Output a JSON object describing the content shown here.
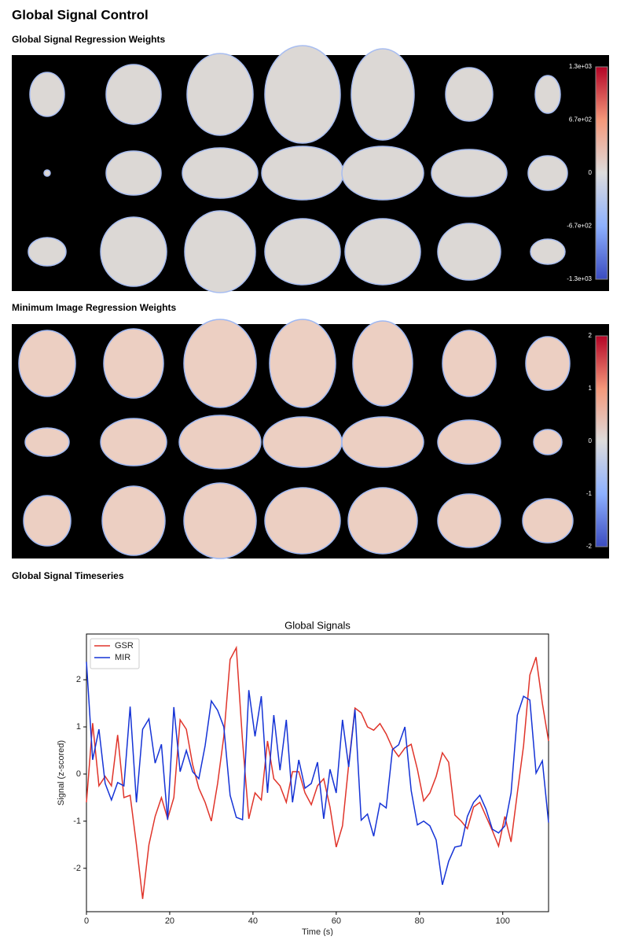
{
  "header": {
    "title": "Global Signal Control"
  },
  "sections": [
    {
      "heading": "Global Signal Regression Weights",
      "colorbar": [
        "1.3e+03",
        "6.7e+02",
        "0",
        "-6.7e+02",
        "-1.3e+03"
      ]
    },
    {
      "heading": "Minimum Image Regression Weights",
      "colorbar": [
        "2",
        "1",
        "0",
        "-1",
        "-2"
      ]
    },
    {
      "heading": "Global Signal Timeseries"
    }
  ],
  "chart_data": {
    "type": "line",
    "title": "Global Signals",
    "x_label": "Time (s)",
    "y_label": "Signal (z-scored)",
    "x": [
      0,
      1.5,
      3,
      4.5,
      6,
      7.5,
      9,
      10.5,
      12,
      13.5,
      15,
      16.5,
      18,
      19.5,
      21,
      22.5,
      24,
      25.5,
      27,
      28.5,
      30,
      31.5,
      33,
      34.5,
      36,
      37.5,
      39,
      40.5,
      42,
      43.5,
      45,
      46.5,
      48,
      49.5,
      51,
      52.5,
      54,
      55.5,
      57,
      58.5,
      60,
      61.5,
      63,
      64.5,
      66,
      67.5,
      69,
      70.5,
      72,
      73.5,
      75,
      76.5,
      78,
      79.5,
      81,
      82.5,
      84,
      85.5,
      87,
      88.5,
      90,
      91.5,
      93,
      94.5,
      96,
      97.5,
      99,
      100.5,
      102,
      103.5,
      105,
      106.5,
      108,
      109.5,
      111
    ],
    "series": [
      {
        "name": "GSR",
        "color": "#e0342a",
        "values": [
          -0.6,
          1.08,
          -0.25,
          -0.05,
          -0.25,
          0.83,
          -0.5,
          -0.45,
          -1.5,
          -2.65,
          -1.5,
          -0.9,
          -0.5,
          -0.95,
          -0.5,
          1.15,
          0.95,
          0.2,
          -0.3,
          -0.6,
          -1.0,
          -0.2,
          0.8,
          2.43,
          2.68,
          0.7,
          -0.95,
          -0.4,
          -0.55,
          0.7,
          -0.1,
          -0.25,
          -0.6,
          0.05,
          0.05,
          -0.4,
          -0.65,
          -0.25,
          -0.1,
          -0.7,
          -1.55,
          -1.1,
          0.2,
          1.4,
          1.3,
          1.0,
          0.93,
          1.07,
          0.85,
          0.55,
          0.37,
          0.55,
          0.63,
          0.1,
          -0.57,
          -0.4,
          -0.05,
          0.45,
          0.25,
          -0.87,
          -1.0,
          -1.16,
          -0.7,
          -0.6,
          -0.9,
          -1.2,
          -1.53,
          -0.9,
          -1.44,
          -0.4,
          0.6,
          2.1,
          2.48,
          1.5,
          0.7
        ]
      },
      {
        "name": "MIR",
        "color": "#1533d6",
        "values": [
          2.38,
          0.3,
          0.95,
          -0.2,
          -0.55,
          -0.18,
          -0.25,
          1.43,
          -0.6,
          0.95,
          1.17,
          0.23,
          0.63,
          -0.97,
          1.42,
          0.05,
          0.5,
          0.05,
          -0.1,
          0.6,
          1.55,
          1.35,
          1.0,
          -0.45,
          -0.92,
          -0.97,
          1.78,
          0.8,
          1.65,
          -0.4,
          1.25,
          0.08,
          1.15,
          -0.6,
          0.3,
          -0.3,
          -0.2,
          0.25,
          -0.95,
          0.1,
          -0.4,
          1.15,
          0.15,
          1.37,
          -0.98,
          -0.85,
          -1.32,
          -0.62,
          -0.72,
          0.52,
          0.62,
          1.0,
          -0.35,
          -1.08,
          -1.0,
          -1.1,
          -1.4,
          -2.35,
          -1.85,
          -1.55,
          -1.52,
          -0.9,
          -0.6,
          -0.45,
          -0.75,
          -1.17,
          -1.25,
          -1.1,
          -0.4,
          1.25,
          1.65,
          1.57,
          0.02,
          0.28,
          -1.03
        ]
      }
    ],
    "xlim": [
      0,
      111
    ],
    "ylim": [
      -2.92,
      2.97
    ],
    "xticks": [
      0,
      20,
      40,
      60,
      80,
      100
    ],
    "yticks": [
      -2,
      -1,
      0,
      1,
      2
    ],
    "legend": "upper left"
  }
}
